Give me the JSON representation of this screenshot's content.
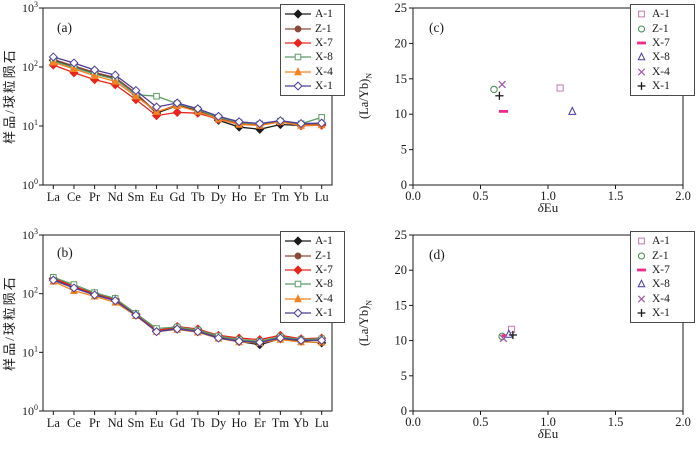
{
  "chart_data": [
    {
      "id": "a",
      "type": "line",
      "tag": "(a)",
      "ylabel": "样品/球粒陨石",
      "yscale": "log",
      "ylim": [
        1,
        1000
      ],
      "ytick_exponents": [
        0,
        1,
        2,
        3
      ],
      "categories": [
        "La",
        "Ce",
        "Pr",
        "Nd",
        "Sm",
        "Eu",
        "Gd",
        "Tb",
        "Dy",
        "Ho",
        "Er",
        "Tm",
        "Yb",
        "Lu"
      ],
      "legend_position": "top-right",
      "series": [
        {
          "name": "A-1",
          "color": "#1a1a1a",
          "marker": "diamond",
          "filled": true,
          "values": [
            130,
            100,
            78,
            64,
            35,
            16.5,
            22,
            18.5,
            12.5,
            9.6,
            8.8,
            10.6,
            10.2,
            10.5
          ]
        },
        {
          "name": "Z-1",
          "color": "#8b4a3a",
          "marker": "circle",
          "filled": true,
          "values": [
            135,
            104,
            81,
            66,
            36,
            17,
            23,
            19,
            13.6,
            11,
            10.6,
            12,
            10.6,
            10.8
          ]
        },
        {
          "name": "X-7",
          "color": "#e8251d",
          "marker": "diamond",
          "filled": true,
          "values": [
            108,
            80,
            61,
            50,
            28,
            15,
            17,
            16.5,
            13,
            10.9,
            10.4,
            11.9,
            10.1,
            10.3
          ]
        },
        {
          "name": "X-8",
          "color": "#5e9c66",
          "marker": "square",
          "filled": false,
          "values": [
            126,
            98,
            76,
            62,
            34,
            32,
            24,
            19,
            14,
            11.4,
            10.8,
            12.1,
            10.9,
            14
          ]
        },
        {
          "name": "X-4",
          "color": "#f58220",
          "marker": "triangle",
          "filled": true,
          "values": [
            120,
            93,
            71,
            57,
            32,
            17.5,
            22,
            17.6,
            13,
            10.6,
            10.2,
            11.7,
            10.2,
            10.4
          ]
        },
        {
          "name": "X-1",
          "color": "#4e3d99",
          "marker": "diamond",
          "filled": false,
          "values": [
            148,
            117,
            89,
            73,
            40,
            21,
            24.5,
            19.6,
            14.6,
            11.8,
            11,
            12.3,
            11,
            11.2
          ]
        }
      ]
    },
    {
      "id": "b",
      "type": "line",
      "tag": "(b)",
      "ylabel": "样品/球粒陨石",
      "yscale": "log",
      "ylim": [
        1,
        1000
      ],
      "ytick_exponents": [
        0,
        1,
        2,
        3
      ],
      "categories": [
        "La",
        "Ce",
        "Pr",
        "Nd",
        "Sm",
        "Eu",
        "Gd",
        "Tb",
        "Dy",
        "Ho",
        "Er",
        "Tm",
        "Yb",
        "Lu"
      ],
      "legend_position": "top-right",
      "series": [
        {
          "name": "A-1",
          "color": "#1a1a1a",
          "marker": "diamond",
          "filled": true,
          "values": [
            180,
            130,
            98,
            78,
            44,
            23,
            25,
            22.5,
            17.8,
            15.3,
            13.5,
            17,
            15.5,
            14.5
          ]
        },
        {
          "name": "Z-1",
          "color": "#8b4a3a",
          "marker": "circle",
          "filled": true,
          "values": [
            185,
            133,
            100,
            80,
            45,
            23.5,
            26,
            23.5,
            18.5,
            16.3,
            15,
            18,
            16,
            16.5
          ]
        },
        {
          "name": "X-7",
          "color": "#e8251d",
          "marker": "diamond",
          "filled": true,
          "values": [
            183,
            132,
            101,
            81,
            45,
            23.5,
            27.5,
            25,
            19.5,
            17.5,
            16.5,
            19.5,
            17,
            17.5
          ]
        },
        {
          "name": "X-8",
          "color": "#5e9c66",
          "marker": "square",
          "filled": false,
          "values": [
            190,
            143,
            104,
            83,
            46,
            25.5,
            27,
            24,
            19,
            16.5,
            15.5,
            18.5,
            16.5,
            17
          ]
        },
        {
          "name": "X-4",
          "color": "#f58220",
          "marker": "triangle",
          "filled": true,
          "values": [
            162,
            112,
            90,
            71,
            42,
            22.5,
            24.5,
            22,
            17.3,
            15,
            14.5,
            16.5,
            15,
            14.8
          ]
        },
        {
          "name": "X-1",
          "color": "#4e3d99",
          "marker": "diamond",
          "filled": false,
          "values": [
            170,
            125,
            95,
            76,
            43,
            22.5,
            25,
            22.5,
            17.5,
            15.5,
            14.8,
            17.5,
            16,
            16
          ]
        }
      ]
    },
    {
      "id": "c",
      "type": "scatter",
      "tag": "(c)",
      "ylabel": "(La/Yb)",
      "ylabel_sub": "N",
      "xlabel_italic": "δ",
      "xlabel": "Eu",
      "xlim": [
        0,
        2
      ],
      "ylim": [
        0,
        25
      ],
      "xtick_labels": [
        "0.0",
        "0.5",
        "1.0",
        "1.5",
        "2.0"
      ],
      "ytick_labels": [
        "0",
        "5",
        "10",
        "15",
        "20",
        "25"
      ],
      "legend_position": "top-right",
      "series": [
        {
          "name": "A-1",
          "color": "#c678ab",
          "marker": "square",
          "filled": false,
          "points": [
            [
              1.09,
              13.7
            ]
          ]
        },
        {
          "name": "Z-1",
          "color": "#3f8a4d",
          "marker": "circle",
          "filled": false,
          "points": [
            [
              0.6,
              13.5
            ]
          ]
        },
        {
          "name": "X-7",
          "color": "#ee2a8b",
          "marker": "dash",
          "filled": true,
          "points": [
            [
              0.67,
              10.4
            ]
          ]
        },
        {
          "name": "X-8",
          "color": "#4538a8",
          "marker": "triangle",
          "filled": false,
          "points": [
            [
              1.18,
              10.4
            ]
          ]
        },
        {
          "name": "X-4",
          "color": "#a05fa8",
          "marker": "x",
          "filled": true,
          "points": [
            [
              0.66,
              14.2
            ]
          ]
        },
        {
          "name": "X-1",
          "color": "#1a1a1a",
          "marker": "plus",
          "filled": true,
          "points": [
            [
              0.64,
              12.6
            ]
          ]
        }
      ]
    },
    {
      "id": "d",
      "type": "scatter",
      "tag": "(d)",
      "ylabel": "(La/Yb)",
      "ylabel_sub": "N",
      "xlabel_italic": "δ",
      "xlabel": "Eu",
      "xlim": [
        0,
        2
      ],
      "ylim": [
        0,
        25
      ],
      "xtick_labels": [
        "0.0",
        "0.5",
        "1.0",
        "1.5",
        "2.0"
      ],
      "ytick_labels": [
        "0",
        "5",
        "10",
        "15",
        "20",
        "25"
      ],
      "legend_position": "top-right",
      "series": [
        {
          "name": "A-1",
          "color": "#c678ab",
          "marker": "square",
          "filled": false,
          "points": [
            [
              0.73,
              11.6
            ]
          ]
        },
        {
          "name": "Z-1",
          "color": "#3f8a4d",
          "marker": "circle",
          "filled": false,
          "points": [
            [
              0.66,
              10.6
            ]
          ]
        },
        {
          "name": "X-7",
          "color": "#ee2a8b",
          "marker": "dash",
          "filled": true,
          "points": [
            [
              0.69,
              10.7
            ]
          ]
        },
        {
          "name": "X-8",
          "color": "#4538a8",
          "marker": "triangle",
          "filled": false,
          "points": [
            [
              0.71,
              10.9
            ]
          ]
        },
        {
          "name": "X-4",
          "color": "#a05fa8",
          "marker": "x",
          "filled": true,
          "points": [
            [
              0.67,
              10.3
            ]
          ]
        },
        {
          "name": "X-1",
          "color": "#1a1a1a",
          "marker": "plus",
          "filled": true,
          "points": [
            [
              0.74,
              10.8
            ]
          ]
        }
      ]
    }
  ]
}
